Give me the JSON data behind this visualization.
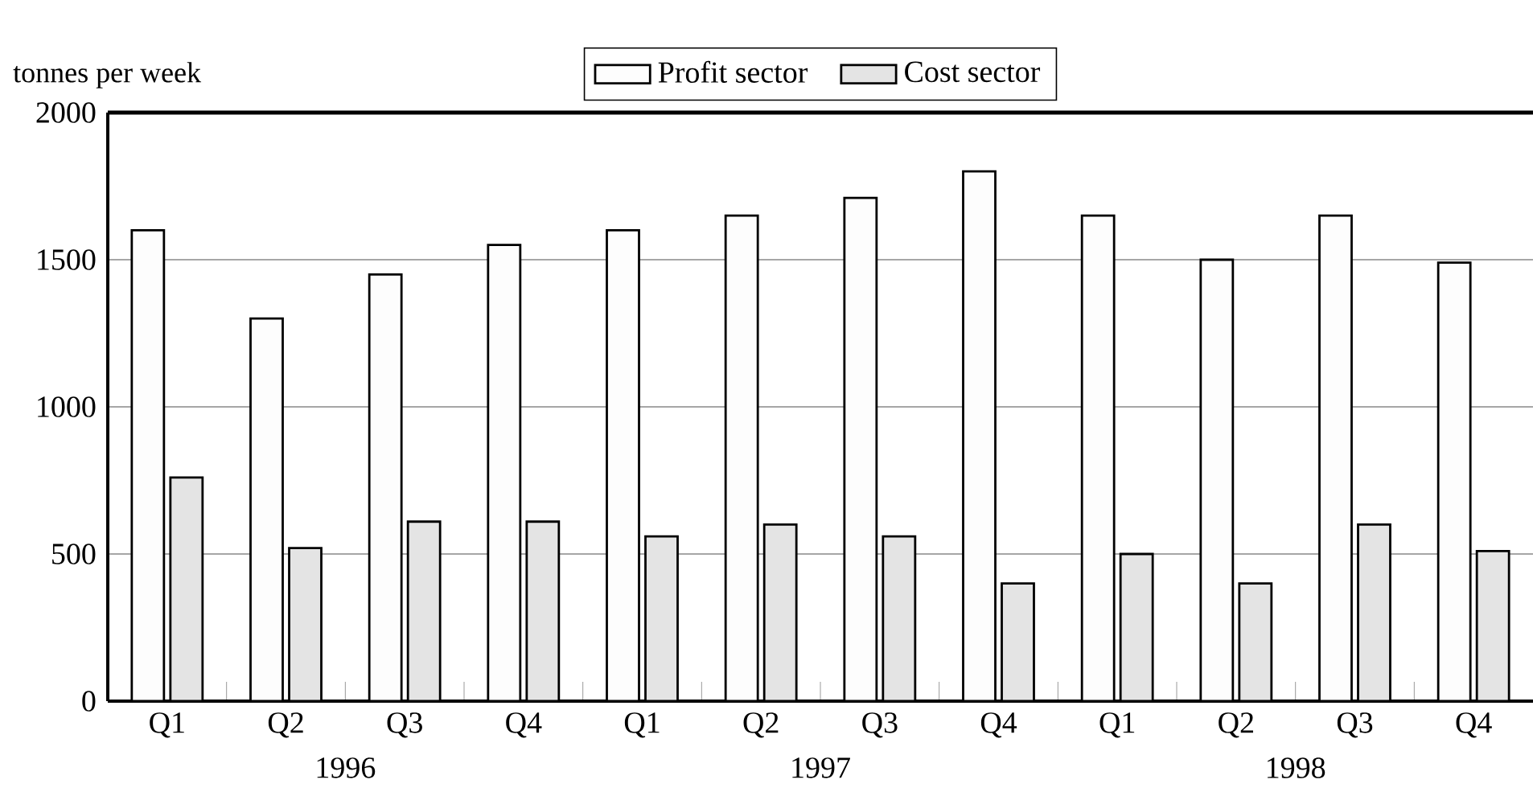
{
  "chart_data": {
    "type": "bar",
    "ylabel": "tonnes per week",
    "categories": [
      "Q1",
      "Q2",
      "Q3",
      "Q4",
      "Q1",
      "Q2",
      "Q3",
      "Q4",
      "Q1",
      "Q2",
      "Q3",
      "Q4"
    ],
    "series": [
      {
        "name": "Profit sector",
        "color": "#fdfdfd",
        "values": [
          1600,
          1300,
          1450,
          1550,
          1600,
          1650,
          1710,
          1800,
          1650,
          1500,
          1650,
          1490
        ]
      },
      {
        "name": "Cost sector",
        "color": "#e4e4e4",
        "values": [
          760,
          520,
          610,
          610,
          560,
          600,
          560,
          400,
          500,
          400,
          600,
          510
        ]
      }
    ],
    "annotations": [
      "1996",
      "1997",
      "1998"
    ],
    "ylim": [
      0,
      2000
    ],
    "yticks": [
      0,
      500,
      1000,
      1500,
      2000
    ],
    "grid": "y",
    "legend": "top"
  }
}
